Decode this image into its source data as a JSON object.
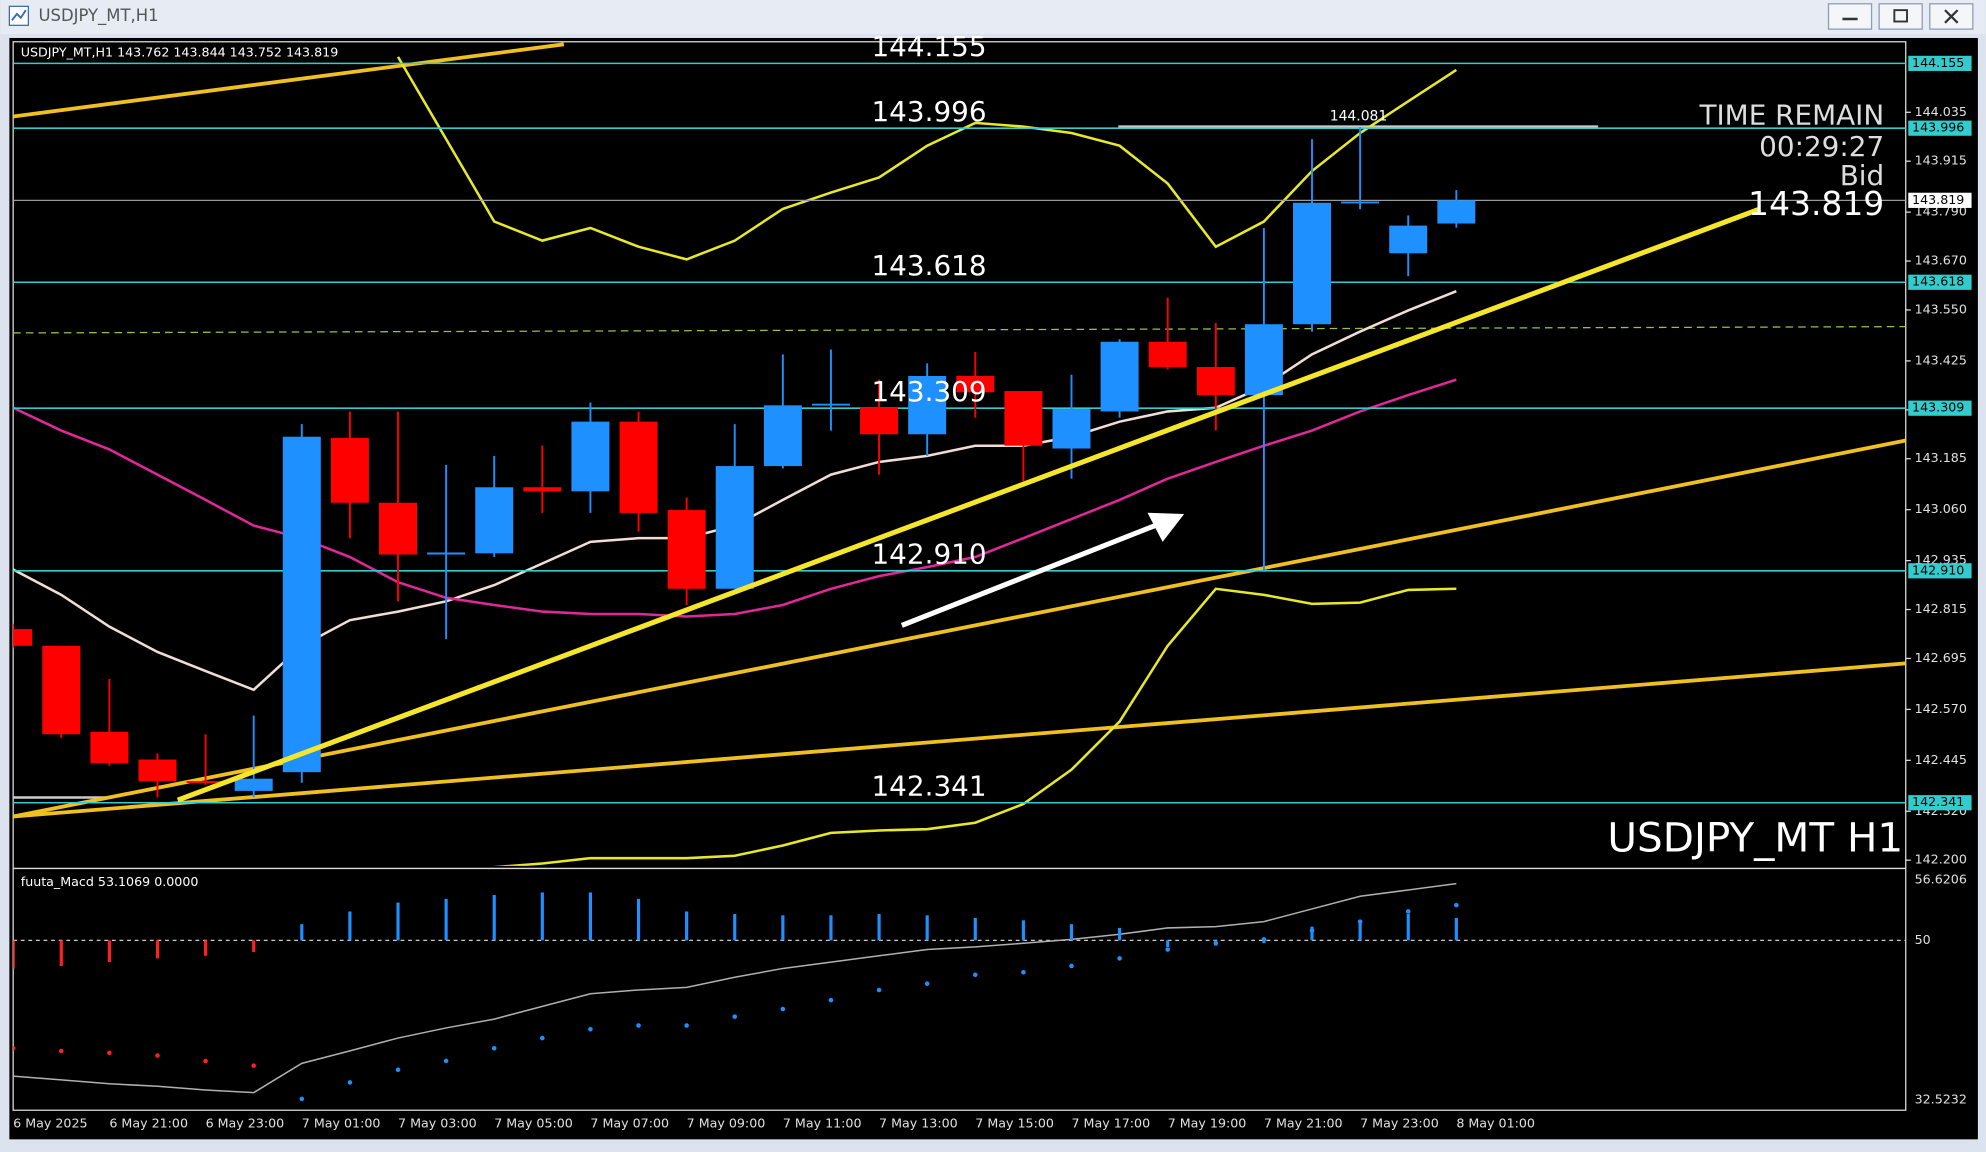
{
  "window": {
    "title": "USDJPY_MT,H1"
  },
  "chart_data": [
    {
      "type": "candlestick",
      "header": "USDJPY_MT,H1  143.762 143.844 143.752 143.819",
      "symbol_label": "USDJPY_MT H1",
      "categories": [
        "6 May 2025",
        null,
        "6 May 21:00",
        null,
        "6 May 23:00",
        null,
        "7 May 01:00",
        null,
        "7 May 03:00",
        null,
        "7 May 05:00",
        null,
        "7 May 07:00",
        null,
        "7 May 09:00",
        null,
        "7 May 11:00",
        null,
        "7 May 13:00",
        null,
        "7 May 15:00",
        null,
        "7 May 17:00",
        null,
        "7 May 19:00",
        null,
        "7 May 21:00",
        null,
        "7 May 23:00",
        null,
        "8 May 01:00"
      ],
      "open": [
        142.767,
        142.726,
        142.515,
        142.447,
        142.394,
        142.37,
        142.416,
        143.236,
        143.077,
        142.95,
        142.953,
        143.115,
        143.105,
        143.276,
        143.059,
        142.866,
        143.167,
        143.316,
        143.31,
        143.245,
        143.388,
        143.351,
        143.21,
        143.301,
        143.472,
        143.41,
        143.341,
        143.515,
        143.813,
        143.689,
        143.762
      ],
      "high": [
        142.78,
        142.726,
        142.645,
        142.462,
        142.509,
        142.555,
        143.27,
        143.301,
        143.301,
        143.17,
        143.192,
        143.217,
        143.323,
        143.301,
        143.09,
        143.27,
        143.441,
        143.453,
        143.379,
        143.419,
        143.447,
        143.351,
        143.391,
        143.478,
        143.58,
        143.518,
        143.751,
        143.969,
        143.999,
        143.782,
        143.844
      ],
      "low": [
        142.72,
        142.5,
        142.432,
        142.354,
        142.385,
        142.354,
        142.39,
        142.99,
        142.835,
        142.742,
        142.944,
        143.052,
        143.052,
        143.006,
        142.826,
        142.866,
        143.161,
        143.254,
        143.146,
        143.192,
        143.286,
        143.13,
        143.136,
        143.286,
        143.404,
        143.254,
        142.907,
        143.497,
        143.797,
        143.633,
        143.752
      ],
      "close": [
        142.726,
        142.509,
        142.438,
        142.394,
        142.39,
        142.4,
        143.239,
        143.077,
        142.95,
        142.955,
        143.115,
        143.105,
        143.276,
        143.052,
        142.866,
        143.167,
        143.316,
        143.32,
        143.245,
        143.388,
        143.348,
        143.217,
        143.307,
        143.472,
        143.41,
        143.341,
        143.515,
        143.813,
        143.816,
        143.757,
        143.819
      ],
      "up_color": "#1e90ff",
      "down_color": "#ff0000",
      "overlays": [
        {
          "color": "#f2ddd5",
          "values": [
            142.913,
            142.851,
            142.773,
            142.711,
            142.664,
            142.618,
            142.726,
            142.789,
            142.81,
            142.835,
            142.875,
            142.928,
            142.981,
            142.99,
            142.99,
            143.021,
            143.084,
            143.146,
            143.177,
            143.192,
            143.217,
            143.217,
            143.239,
            143.276,
            143.301,
            143.31,
            143.363,
            143.441,
            143.497,
            143.549,
            143.596
          ]
        },
        {
          "color": "#e0289a",
          "values": [
            143.31,
            143.254,
            143.208,
            143.146,
            143.084,
            143.021,
            142.99,
            142.944,
            142.882,
            142.844,
            142.826,
            142.81,
            142.804,
            142.804,
            142.798,
            142.804,
            142.826,
            142.866,
            142.897,
            142.919,
            142.944,
            142.99,
            143.037,
            143.084,
            143.136,
            143.177,
            143.217,
            143.254,
            143.301,
            143.341,
            143.379
          ]
        },
        {
          "color": "#e8e82a",
          "values": [
            null,
            null,
            null,
            null,
            null,
            null,
            null,
            null,
            144.171,
            143.969,
            143.767,
            143.72,
            143.751,
            143.705,
            143.674,
            143.72,
            143.798,
            143.838,
            143.875,
            143.953,
            144.009,
            144.0,
            143.984,
            143.953,
            143.86,
            143.705,
            143.767,
            143.891,
            143.984,
            144.062,
            144.139
          ]
        },
        {
          "color": "#e8e82a",
          "values": [
            null,
            null,
            null,
            null,
            null,
            null,
            null,
            null,
            null,
            null,
            142.183,
            142.192,
            142.205,
            142.205,
            142.205,
            142.211,
            142.236,
            142.267,
            142.273,
            142.276,
            142.292,
            142.338,
            142.422,
            142.54,
            142.726,
            142.866,
            142.851,
            142.829,
            142.832,
            142.863,
            142.866
          ]
        }
      ],
      "levels": [
        144.155,
        143.996,
        143.618,
        143.309,
        {
          "value": 142.91,
          "label": "142.910"
        },
        142.341
      ],
      "level_color": "#33cccc",
      "current_price": 143.819,
      "high_label": "144.081",
      "time_remain_label": "TIME REMAIN",
      "time_remain": "00:29:27",
      "bid_label": "Bid",
      "ylim": [
        142.186,
        144.208
      ],
      "yticks": [
        144.035,
        143.915,
        {
          "value": 143.79,
          "label": "143.790"
        },
        {
          "value": 143.67,
          "label": "143.670"
        },
        {
          "value": 143.55,
          "label": "143.550"
        },
        143.425,
        143.305,
        143.185,
        {
          "value": 143.06,
          "label": "143.060"
        },
        142.935,
        142.815,
        142.695,
        {
          "value": 142.57,
          "label": "142.570"
        },
        142.445,
        {
          "value": 142.32,
          "label": "142.320"
        },
        {
          "value": 142.2,
          "label": "142.200"
        }
      ]
    },
    {
      "type": "macd",
      "header": "fuuta_Macd 53.1069  0.0000",
      "values": [
        46.92,
        47.2,
        47.62,
        48.03,
        48.31,
        48.73,
        51.77,
        53.16,
        54.13,
        54.54,
        54.96,
        55.24,
        55.24,
        54.54,
        53.16,
        52.88,
        52.74,
        52.74,
        52.88,
        52.74,
        52.46,
        52.19,
        51.77,
        51.36,
        49.28,
        49.42,
        49.69,
        51.5,
        52.05,
        52.88,
        52.46
      ],
      "signal": [
        38.2,
        37.9,
        37.7,
        37.4,
        36.8,
        36.3,
        32.66,
        34.46,
        35.84,
        36.81,
        38.2,
        39.31,
        40.28,
        40.69,
        40.69,
        41.66,
        42.49,
        43.46,
        44.57,
        45.26,
        46.23,
        46.51,
        47.2,
        48.03,
        49.0,
        49.69,
        50.11,
        51.08,
        52.05,
        53.16,
        53.85
      ],
      "line": [
        35.15,
        34.74,
        34.32,
        34.04,
        33.63,
        33.35,
        36.54,
        37.92,
        39.31,
        40.42,
        41.39,
        42.77,
        44.16,
        44.57,
        44.85,
        45.96,
        46.93,
        47.62,
        48.31,
        49.0,
        49.28,
        49.69,
        50.11,
        50.66,
        51.36,
        51.5,
        52.05,
        53.44,
        54.82,
        55.51,
        56.2
      ],
      "line_color": "#b0b0b0",
      "colors": [
        "#ff2020",
        "#ff2020",
        "#ff2020",
        "#ff2020",
        "#ff2020",
        "#ff2020",
        "#1e90ff",
        "#1e90ff",
        "#1e90ff",
        "#1e90ff",
        "#1e90ff",
        "#1e90ff",
        "#1e90ff",
        "#1e90ff",
        "#1e90ff",
        "#1e90ff",
        "#1e90ff",
        "#1e90ff",
        "#1e90ff",
        "#1e90ff",
        "#1e90ff",
        "#1e90ff",
        "#1e90ff",
        "#1e90ff",
        "#1e90ff",
        "#1e90ff",
        "#1e90ff",
        "#1e90ff",
        "#1e90ff",
        "#1e90ff",
        "#1e90ff"
      ],
      "ylim": [
        31.42,
        57.59
      ],
      "yticks": [
        56.6206,
        50,
        32.5232
      ]
    }
  ]
}
